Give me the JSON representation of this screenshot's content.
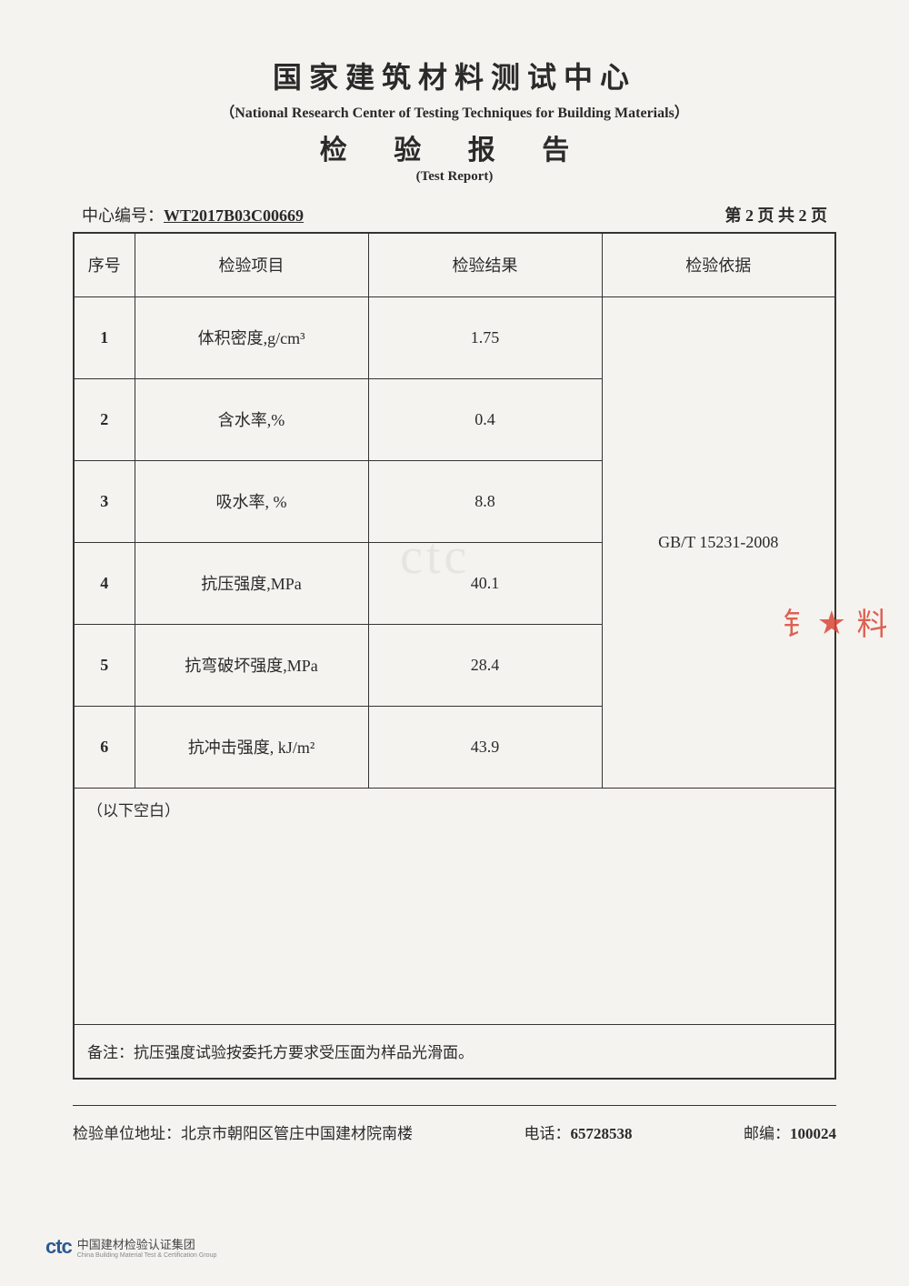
{
  "header": {
    "title_cn": "国家建筑材料测试中心",
    "title_en": "（National Research Center of Testing Techniques for Building Materials）",
    "subtitle_cn": "检 验 报 告",
    "subtitle_en": "(Test Report)"
  },
  "meta": {
    "id_label": "中心编号：",
    "id_value": "WT2017B03C00669",
    "page_info": "第 2 页 共 2 页"
  },
  "columns": {
    "idx": "序号",
    "item": "检验项目",
    "result": "检验结果",
    "basis": "检验依据"
  },
  "rows": [
    {
      "idx": "1",
      "item": "体积密度,g/cm³",
      "result": "1.75"
    },
    {
      "idx": "2",
      "item": "含水率,%",
      "result": "0.4"
    },
    {
      "idx": "3",
      "item": "吸水率, %",
      "result": "8.8"
    },
    {
      "idx": "4",
      "item": "抗压强度,MPa",
      "result": "40.1"
    },
    {
      "idx": "5",
      "item": "抗弯破坏强度,MPa",
      "result": "28.4"
    },
    {
      "idx": "6",
      "item": "抗冲击强度, kJ/m²",
      "result": "43.9"
    }
  ],
  "basis_value": "GB/T 15231-2008",
  "blank_text": "（以下空白）",
  "remark": {
    "label": "备注：",
    "text": "抗压强度试验按委托方要求受压面为样品光滑面。"
  },
  "footer": {
    "address_label": "检验单位地址：",
    "address_value": "北京市朝阳区管庄中国建材院南楼",
    "tel_label": "电话：",
    "tel_value": "65728538",
    "zip_label": "邮编：",
    "zip_value": "100024"
  },
  "watermark_text": "ctc",
  "stamp": {
    "text1": "料",
    "star": "★",
    "text2": "钅"
  },
  "logo": {
    "mark": "ctc",
    "cn": "中国建材检验认证集团",
    "en": "China Building Material Test & Certification Group"
  },
  "styling": {
    "page_bg": "#f5f3f0",
    "text_color": "#2a2a2a",
    "border_color": "#333333",
    "stamp_color": "#d94838",
    "watermark_color": "#cfcdc8",
    "logo_color": "#2c5a92",
    "title_fontsize": 32,
    "subtitle_fontsize": 30,
    "body_fontsize": 18,
    "table_border_width": 2,
    "col_widths": {
      "idx": 60,
      "item": 230,
      "result": 230,
      "basis": 230
    },
    "header_row_height": 70,
    "data_row_height": 90,
    "blank_row_height": 260,
    "remark_row_height": 60
  }
}
